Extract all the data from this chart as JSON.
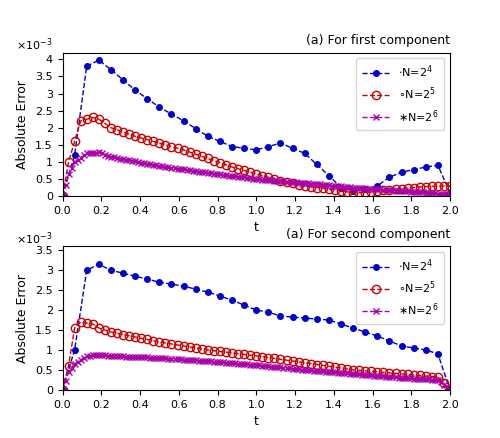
{
  "title1": "(a) For first component",
  "title2": "(a) For second component",
  "xlabel": "t",
  "ylabel": "Absolute Error",
  "legend_labels": [
    "N=2$^4$",
    "N=2$^5$",
    "N=2$^6$"
  ],
  "colors": [
    "#0000cc",
    "#cc0000",
    "#aa00aa"
  ],
  "markers": [
    "o",
    "o",
    "x"
  ],
  "markerfacecolors": [
    "#0000cc",
    "none",
    "none"
  ],
  "linestyles": [
    "--",
    "--",
    "--"
  ],
  "linewidths": [
    1.0,
    1.0,
    1.0
  ],
  "markersize_blue": 4,
  "markersize_red": 6,
  "markersize_pink": 5,
  "xlim": [
    0,
    2
  ],
  "ylim1": [
    0,
    0.0042
  ],
  "ylim2": [
    0,
    0.0036
  ],
  "yticks1": [
    0,
    0.0005,
    0.001,
    0.0015,
    0.002,
    0.0025,
    0.003,
    0.0035,
    0.004
  ],
  "yticks2": [
    0,
    0.0005,
    0.001,
    0.0015,
    0.002,
    0.0025,
    0.003,
    0.0035
  ],
  "t_N4": [
    0.0,
    0.0625,
    0.125,
    0.1875,
    0.25,
    0.3125,
    0.375,
    0.4375,
    0.5,
    0.5625,
    0.625,
    0.6875,
    0.75,
    0.8125,
    0.875,
    0.9375,
    1.0,
    1.0625,
    1.125,
    1.1875,
    1.25,
    1.3125,
    1.375,
    1.4375,
    1.5,
    1.5625,
    1.625,
    1.6875,
    1.75,
    1.8125,
    1.875,
    1.9375,
    2.0
  ],
  "t_N5": [
    0.0,
    0.03125,
    0.0625,
    0.09375,
    0.125,
    0.15625,
    0.1875,
    0.21875,
    0.25,
    0.28125,
    0.3125,
    0.34375,
    0.375,
    0.40625,
    0.4375,
    0.46875,
    0.5,
    0.53125,
    0.5625,
    0.59375,
    0.625,
    0.65625,
    0.6875,
    0.71875,
    0.75,
    0.78125,
    0.8125,
    0.84375,
    0.875,
    0.90625,
    0.9375,
    0.96875,
    1.0,
    1.03125,
    1.0625,
    1.09375,
    1.125,
    1.15625,
    1.1875,
    1.21875,
    1.25,
    1.28125,
    1.3125,
    1.34375,
    1.375,
    1.40625,
    1.4375,
    1.46875,
    1.5,
    1.53125,
    1.5625,
    1.59375,
    1.625,
    1.65625,
    1.6875,
    1.71875,
    1.75,
    1.78125,
    1.8125,
    1.84375,
    1.875,
    1.90625,
    1.9375,
    1.96875,
    2.0
  ],
  "t_N6": [
    0.0,
    0.015625,
    0.03125,
    0.046875,
    0.0625,
    0.078125,
    0.09375,
    0.109375,
    0.125,
    0.140625,
    0.15625,
    0.171875,
    0.1875,
    0.203125,
    0.21875,
    0.234375,
    0.25,
    0.265625,
    0.28125,
    0.296875,
    0.3125,
    0.328125,
    0.34375,
    0.359375,
    0.375,
    0.390625,
    0.40625,
    0.421875,
    0.4375,
    0.453125,
    0.46875,
    0.484375,
    0.5,
    0.515625,
    0.53125,
    0.546875,
    0.5625,
    0.578125,
    0.59375,
    0.609375,
    0.625,
    0.640625,
    0.65625,
    0.671875,
    0.6875,
    0.703125,
    0.71875,
    0.734375,
    0.75,
    0.765625,
    0.78125,
    0.796875,
    0.8125,
    0.828125,
    0.84375,
    0.859375,
    0.875,
    0.890625,
    0.90625,
    0.921875,
    0.9375,
    0.953125,
    0.96875,
    0.984375,
    1.0,
    1.015625,
    1.03125,
    1.046875,
    1.0625,
    1.078125,
    1.09375,
    1.109375,
    1.125,
    1.140625,
    1.15625,
    1.171875,
    1.1875,
    1.203125,
    1.21875,
    1.234375,
    1.25,
    1.265625,
    1.28125,
    1.296875,
    1.3125,
    1.328125,
    1.34375,
    1.359375,
    1.375,
    1.390625,
    1.40625,
    1.421875,
    1.4375,
    1.453125,
    1.46875,
    1.484375,
    1.5,
    1.515625,
    1.53125,
    1.546875,
    1.5625,
    1.578125,
    1.59375,
    1.609375,
    1.625,
    1.640625,
    1.65625,
    1.671875,
    1.6875,
    1.703125,
    1.71875,
    1.734375,
    1.75,
    1.765625,
    1.78125,
    1.796875,
    1.8125,
    1.828125,
    1.84375,
    1.859375,
    1.875,
    1.890625,
    1.90625,
    1.921875,
    1.9375,
    1.953125,
    1.96875,
    1.984375,
    2.0
  ],
  "figsize": [
    5.0,
    4.38
  ],
  "dpi": 100
}
